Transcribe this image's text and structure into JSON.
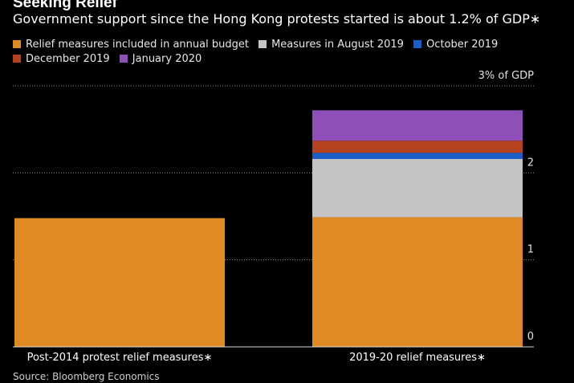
{
  "title": "Seeking Relief",
  "subtitle": "Government support since the Hong Kong protests started is about 1.2% of GDP∗",
  "source": "Source: Bloomberg Economics",
  "legend": [
    {
      "name": "Relief measures included in annual budget",
      "color": "#e08a24"
    },
    {
      "name": "Measures in August 2019",
      "color": "#c4c4c4"
    },
    {
      "name": "October 2019",
      "color": "#1a5fc7"
    },
    {
      "name": "December 2019",
      "color": "#b5421e"
    },
    {
      "name": "January 2020",
      "color": "#8f4fb8"
    }
  ],
  "chart_data": {
    "type": "bar",
    "stacked": true,
    "title": "Seeking Relief",
    "subtitle": "Government support since the Hong Kong protests started is about 1.2% of GDP∗",
    "categories": [
      "Post-2014 protest relief measures∗",
      "2019-20 relief measures∗"
    ],
    "series": [
      {
        "name": "Relief measures included in annual budget",
        "color": "#e08a24",
        "values": [
          1.48,
          1.49
        ]
      },
      {
        "name": "Measures in August 2019",
        "color": "#c4c4c4",
        "values": [
          0,
          0.67
        ]
      },
      {
        "name": "October 2019",
        "color": "#1a5fc7",
        "values": [
          0,
          0.07
        ]
      },
      {
        "name": "December 2019",
        "color": "#b5421e",
        "values": [
          0,
          0.14
        ]
      },
      {
        "name": "January 2020",
        "color": "#8f4fb8",
        "values": [
          0,
          0.35
        ]
      }
    ],
    "yaxis": {
      "min": 0,
      "max": 3,
      "ticks": [
        0,
        1,
        2,
        3
      ],
      "tick_labels": [
        "0",
        "1",
        "2",
        "3% of GDP"
      ],
      "position": "right",
      "grid": "dotted"
    },
    "legend_position": "top-left",
    "source": "Source: Bloomberg Economics"
  }
}
